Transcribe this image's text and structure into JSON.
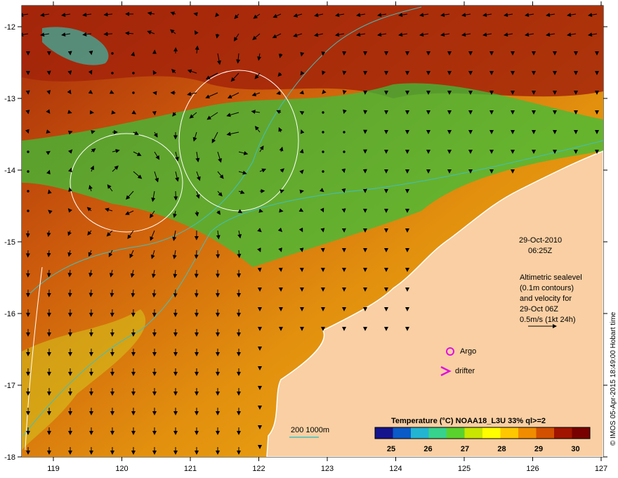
{
  "map": {
    "lon_labels": [
      "119",
      "120",
      "121",
      "122",
      "123",
      "124",
      "125",
      "126",
      "127"
    ],
    "lat_labels": [
      "-12",
      "-13",
      "-14",
      "-15",
      "-16",
      "-17",
      "-18"
    ]
  },
  "annotations": {
    "date": "29-Oct-2010",
    "time": "06:25Z",
    "alt_line1": "Altimetric sealevel",
    "alt_line2": "(0.1m contours)",
    "alt_line3": "and velocity for",
    "alt_line4": "29-Oct 06Z",
    "alt_line5": "0.5m/s (1kt 24h)"
  },
  "legend": {
    "argo_label": "Argo",
    "drifter_label": "drifter",
    "bathy_label": "200  1000m"
  },
  "colorbar": {
    "title": "Temperature (°C) NOAA18_L3U 33% ql>=2",
    "ticks": [
      "25",
      "26",
      "27",
      "28",
      "29",
      "30"
    ],
    "colors": [
      "#14148c",
      "#0a5ac8",
      "#23b4d2",
      "#37d28c",
      "#5ad22d",
      "#c8e600",
      "#ffff00",
      "#ffc800",
      "#f08c00",
      "#d25000",
      "#a01400",
      "#780000"
    ]
  },
  "credit": "© IMOS 05-Apr-2015 18:49:00 Hobart time",
  "colors": {
    "land": "#f9cfa3",
    "sea_warm": "#d9740f",
    "sea_hot": "#a6290a",
    "sea_cool": "#4fc83a",
    "contour": "#ffffff",
    "bathy": "#40c0c0",
    "argo": "#e010e0"
  }
}
